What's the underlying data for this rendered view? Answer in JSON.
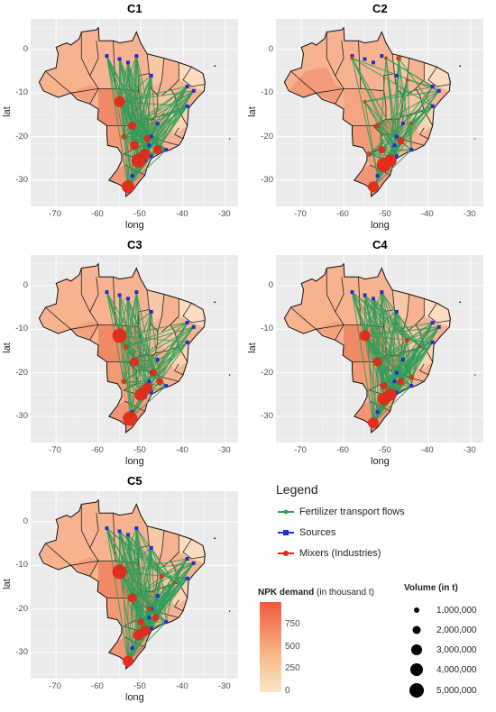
{
  "panels": [
    {
      "id": "C1",
      "title": "C1"
    },
    {
      "id": "C2",
      "title": "C2"
    },
    {
      "id": "C3",
      "title": "C3"
    },
    {
      "id": "C4",
      "title": "C4"
    },
    {
      "id": "C5",
      "title": "C5"
    }
  ],
  "axes": {
    "xlabel": "long",
    "ylabel": "lat",
    "xticks": [
      "-70",
      "-60",
      "-50",
      "-40",
      "-30"
    ],
    "yticks": [
      "0",
      "-10",
      "-20",
      "-30"
    ]
  },
  "legend": {
    "title": "Legend",
    "items": [
      {
        "label": "Fertilizer transport flows",
        "color": "#2e9e5b"
      },
      {
        "label": "Sources",
        "color": "#1f2fd0"
      },
      {
        "label": "Mixers (Industries)",
        "color": "#e02a1a"
      }
    ]
  },
  "colorbar": {
    "title_bold": "NPK demand",
    "title_rest": " (in thousand t)",
    "ticks": [
      "750",
      "500",
      "250",
      "0"
    ],
    "color_low": "#fbe6c8",
    "color_high": "#f05a3a"
  },
  "volume": {
    "title": "Volume (in t)",
    "items": [
      "1,000,000",
      "2,000,000",
      "3,000,000",
      "4,000,000",
      "5,000,000"
    ]
  },
  "colors": {
    "panel_bg": "#ebebeb",
    "grid": "#ffffff",
    "flow": "#2e9e5b",
    "source": "#1f2fd0",
    "mixer": "#e02a1a",
    "mixer_small": "#b5481c"
  }
}
